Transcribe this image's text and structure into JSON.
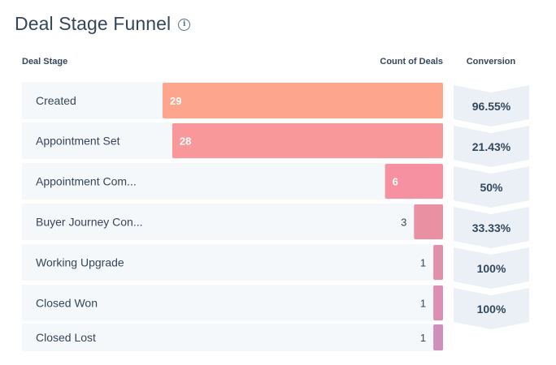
{
  "title": "Deal Stage Funnel",
  "info_icon": "info-icon",
  "headers": {
    "stage": "Deal Stage",
    "count": "Count of Deals",
    "conversion": "Conversion"
  },
  "chart_data": {
    "type": "bar",
    "title": "Deal Stage Funnel",
    "categories": [
      "Created",
      "Appointment Set",
      "Appointment Com...",
      "Buyer Journey Con...",
      "Working Upgrade",
      "Closed Won",
      "Closed Lost"
    ],
    "values": [
      29,
      28,
      6,
      3,
      1,
      1,
      1
    ],
    "value_labels": [
      "29",
      "28",
      "6",
      "3",
      "1",
      "1",
      "1"
    ],
    "conversions": [
      "96.55%",
      "21.43%",
      "50%",
      "33.33%",
      "100%",
      "100%"
    ],
    "bar_colors": [
      "#fea58e",
      "#f9989a",
      "#f591a0",
      "#ea90a3",
      "#e28faa",
      "#dc8fb2",
      "#cf8fbb"
    ],
    "xlim": [
      0,
      29
    ],
    "orientation": "horizontal",
    "grid": false,
    "legend": "none"
  },
  "colors": {
    "row_bg": "#f5f8fa",
    "conv_bg": "#eaf0f6",
    "text": "#33475b"
  }
}
